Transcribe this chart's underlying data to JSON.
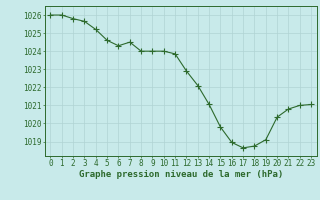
{
  "x": [
    0,
    1,
    2,
    3,
    4,
    5,
    6,
    7,
    8,
    9,
    10,
    11,
    12,
    13,
    14,
    15,
    16,
    17,
    18,
    19,
    20,
    21,
    22,
    23
  ],
  "y": [
    1026.0,
    1026.0,
    1025.8,
    1025.65,
    1025.2,
    1024.6,
    1024.3,
    1024.5,
    1024.0,
    1024.0,
    1024.0,
    1023.85,
    1022.9,
    1022.1,
    1021.05,
    1019.8,
    1018.95,
    1018.65,
    1018.75,
    1019.1,
    1020.35,
    1020.8,
    1021.0,
    1021.05
  ],
  "line_color": "#2d6a2d",
  "marker": "+",
  "marker_size": 4,
  "background_color": "#c8eaea",
  "grid_color": "#b0d4d4",
  "xlabel": "Graphe pression niveau de la mer (hPa)",
  "xlabel_fontsize": 6.5,
  "tick_fontsize": 5.5,
  "ylim": [
    1018.2,
    1026.5
  ],
  "xlim": [
    -0.5,
    23.5
  ],
  "yticks": [
    1019,
    1020,
    1021,
    1022,
    1023,
    1024,
    1025,
    1026
  ],
  "xticks": [
    0,
    1,
    2,
    3,
    4,
    5,
    6,
    7,
    8,
    9,
    10,
    11,
    12,
    13,
    14,
    15,
    16,
    17,
    18,
    19,
    20,
    21,
    22,
    23
  ]
}
